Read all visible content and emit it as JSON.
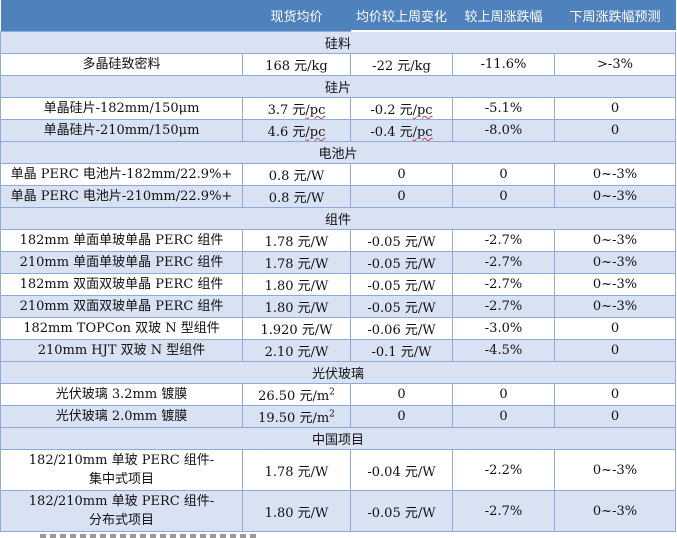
{
  "header": {
    "c0": "",
    "c1": "现货均价",
    "c2": "均价较上周变化",
    "c3": "较上周涨跌幅",
    "c4": "下周涨跌幅预测"
  },
  "sections": [
    {
      "title": "硅料",
      "rows": [
        {
          "name": "多晶硅致密料",
          "price": "168 元/kg",
          "change": "-22 元/kg",
          "pct": "-11.6%",
          "forecast": ">-3%"
        }
      ]
    },
    {
      "title": "硅片",
      "rows": [
        {
          "name": "单晶硅片-182mm/150μm",
          "price": "3.7 元/pc",
          "change": "-0.2 元/pc",
          "pct": "-5.1%",
          "forecast": "0"
        },
        {
          "name": "单晶硅片-210mm/150μm",
          "price": "4.6 元/pc",
          "change": "-0.4 元/pc",
          "pct": "-8.0%",
          "forecast": "0"
        }
      ]
    },
    {
      "title": "电池片",
      "rows": [
        {
          "name": "单晶 PERC 电池片-182mm/22.9%+",
          "price": "0.8 元/W",
          "change": "0",
          "pct": "0",
          "forecast": "0~-3%"
        },
        {
          "name": "单晶 PERC 电池片-210mm/22.9%+",
          "price": "0.8 元/W",
          "change": "0",
          "pct": "0",
          "forecast": "0~-3%"
        }
      ]
    },
    {
      "title": "组件",
      "rows": [
        {
          "name": "182mm 单面单玻单晶 PERC 组件",
          "price": "1.78 元/W",
          "change": "-0.05 元/W",
          "pct": "-2.7%",
          "forecast": "0~-3%"
        },
        {
          "name": "210mm 单面单玻单晶 PERC 组件",
          "price": "1.78 元/W",
          "change": "-0.05 元/W",
          "pct": "-2.7%",
          "forecast": "0~-3%"
        },
        {
          "name": "182mm 双面双玻单晶 PERC 组件",
          "price": "1.80 元/W",
          "change": "-0.05 元/W",
          "pct": "-2.7%",
          "forecast": "0~-3%"
        },
        {
          "name": "210mm 双面双玻单晶 PERC 组件",
          "price": "1.80 元/W",
          "change": "-0.05 元/W",
          "pct": "-2.7%",
          "forecast": "0~-3%"
        },
        {
          "name": "182mm TOPCon 双玻 N 型组件",
          "price": "1.920 元/W",
          "change": "-0.06 元/W",
          "pct": "-3.0%",
          "forecast": "0"
        },
        {
          "name": "210mm HJT 双玻 N 型组件",
          "price": "2.10 元/W",
          "change": "-0.1 元/W",
          "pct": "-4.5%",
          "forecast": "0"
        }
      ]
    },
    {
      "title": "光伏玻璃",
      "rows": [
        {
          "name": "光伏玻璃 3.2mm 镀膜",
          "price": "26.50 元/m",
          "price_sup": "2",
          "change": "0",
          "pct": "0",
          "forecast": "0"
        },
        {
          "name": "光伏玻璃 2.0mm 镀膜",
          "price": "19.50 元/m",
          "price_sup": "2",
          "change": "0",
          "pct": "0",
          "forecast": "0"
        }
      ]
    },
    {
      "title": "中国项目",
      "rows": [
        {
          "name": "182/210mm 单玻 PERC 组件-集中式项目",
          "price": "1.78 元/W",
          "change": "-0.04 元/W",
          "pct": "-2.2%",
          "forecast": "0~-3%"
        },
        {
          "name": "182/210mm 单玻 PERC 组件-分布式项目",
          "price": "1.80 元/W",
          "change": "-0.05 元/W",
          "pct": "-2.7%",
          "forecast": "0~-3%"
        }
      ]
    }
  ],
  "colors": {
    "header_bg": "#4f81bd",
    "band_bg": "#d9e2f3",
    "grid": "#8eaadb"
  }
}
